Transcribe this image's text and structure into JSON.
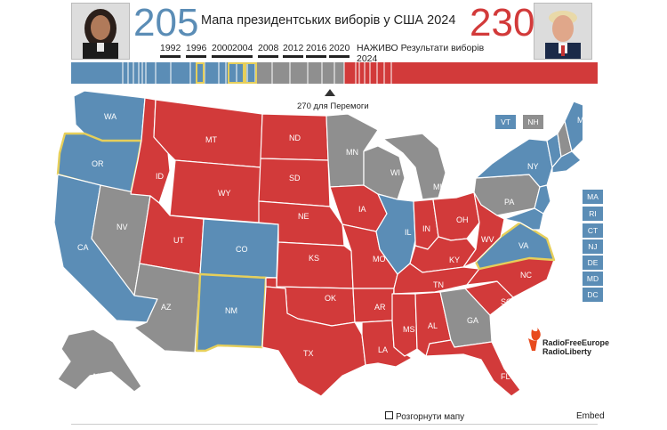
{
  "header": {
    "title": "Мапа президентських виборів у США 2024",
    "left_score": "205",
    "right_score": "230",
    "live_label": "НАЖИВО Результати виборів 2024",
    "years": [
      "1992",
      "1996",
      "2000",
      "2004",
      "2008",
      "2012",
      "2016",
      "2020"
    ]
  },
  "threshold_label": "270 для Перемоги",
  "colors": {
    "dem": "#5b8db6",
    "rep": "#d23a3a",
    "undecided": "#8f8f8f",
    "highlight": "#e6cf5a"
  },
  "map": {
    "states": [
      "WA",
      "OR",
      "CA",
      "NV",
      "ID",
      "MT",
      "WY",
      "UT",
      "AZ",
      "CO",
      "NM",
      "ND",
      "SD",
      "NE",
      "KS",
      "OK",
      "TX",
      "MN",
      "IA",
      "MO",
      "AR",
      "LA",
      "WI",
      "IL",
      "MI",
      "IN",
      "OH",
      "KY",
      "TN",
      "MS",
      "AL",
      "GA",
      "FL",
      "SC",
      "NC",
      "VA",
      "WV",
      "PA",
      "NY",
      "VT",
      "NH",
      "ME",
      "AK"
    ],
    "small_states": [
      "MA",
      "RI",
      "CT",
      "NJ",
      "DE",
      "MD",
      "DC"
    ],
    "top_boxes": [
      "VT",
      "NH"
    ]
  },
  "logo": {
    "line1": "RadioFreeEurope",
    "line2": "RadioLiberty"
  },
  "footer": {
    "expand_label": "Розгорнути мапу",
    "embed_label": "Embed"
  }
}
